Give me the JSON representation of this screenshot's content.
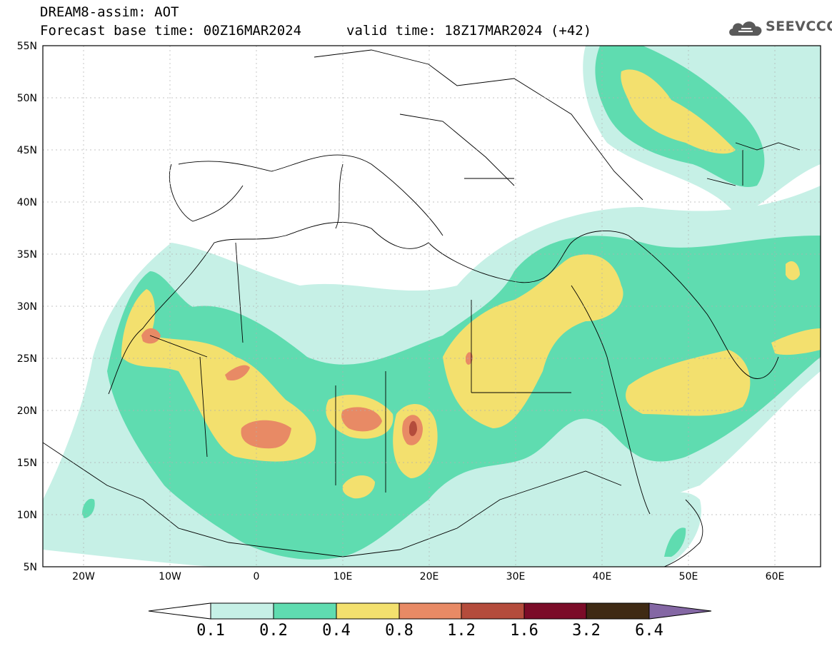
{
  "header": {
    "line1": "DREAM8-assim: AOT",
    "line2": "Forecast base time: 00Z16MAR2024",
    "line3": "valid time: 18Z17MAR2024 (+42)"
  },
  "logo": {
    "text": "SEEVCCC",
    "icon": "cloud-icon"
  },
  "axes": {
    "lat_labels": [
      "55N",
      "50N",
      "45N",
      "40N",
      "35N",
      "30N",
      "25N",
      "20N",
      "15N",
      "10N",
      "5N"
    ],
    "lon_labels": [
      "20W",
      "10W",
      "0",
      "10E",
      "20E",
      "30E",
      "40E",
      "50E",
      "60E"
    ],
    "lat_range": [
      5,
      55
    ],
    "lon_range": [
      -25,
      65
    ]
  },
  "colorbar": {
    "labels": [
      "0.1",
      "0.2",
      "0.4",
      "0.8",
      "1.2",
      "1.6",
      "3.2",
      "6.4"
    ],
    "colors": [
      "#ffffff",
      "#c6f0e6",
      "#5fdcb0",
      "#f3e06e",
      "#e88a65",
      "#b44c3c",
      "#7b0c28",
      "#3f2a14",
      "#8467a4"
    ]
  }
}
